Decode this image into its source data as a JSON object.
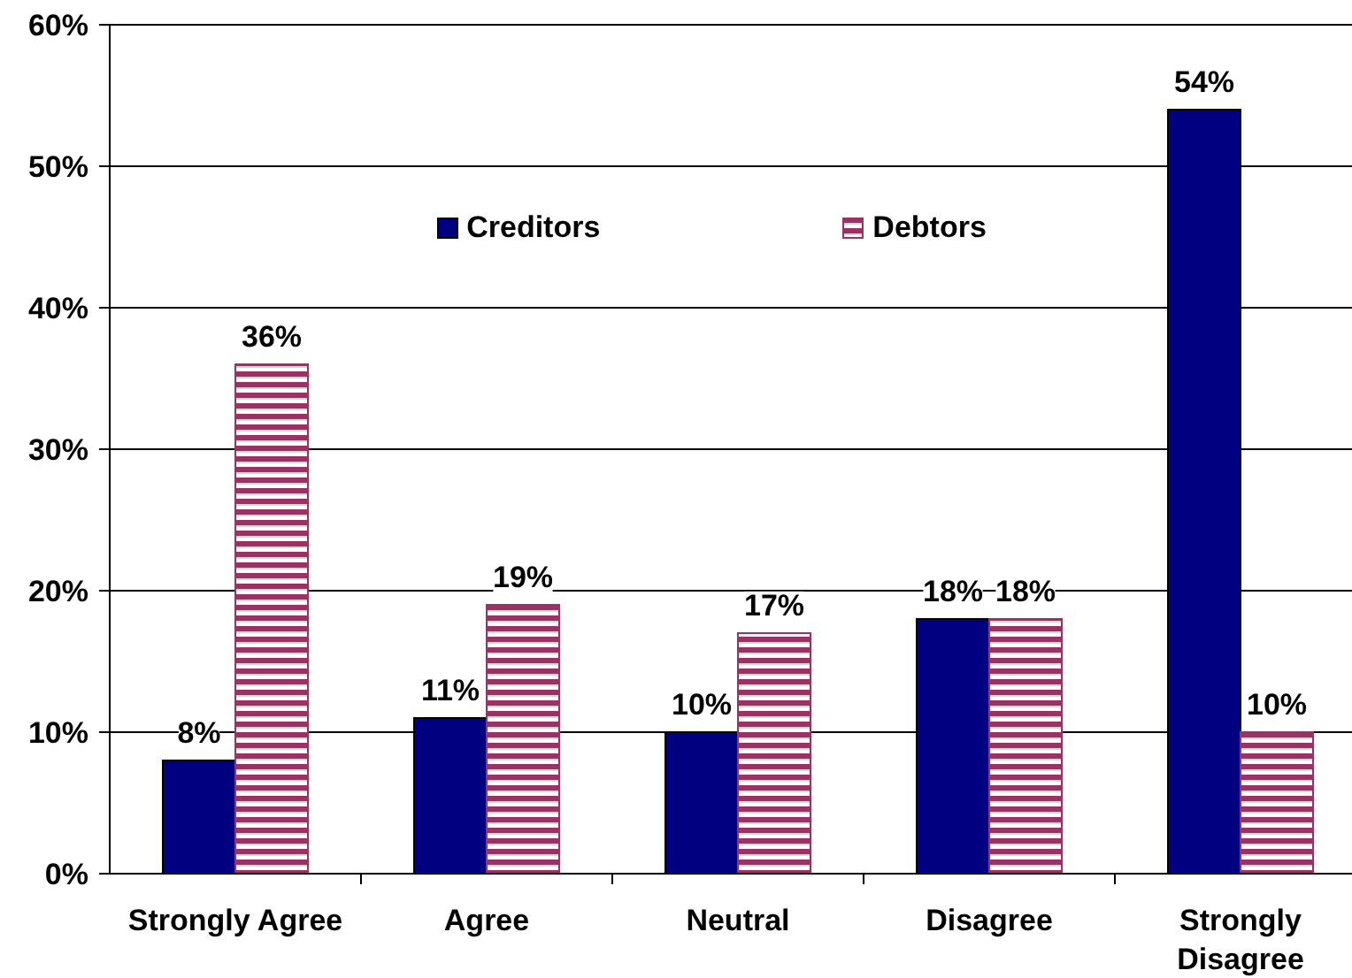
{
  "chart_data": {
    "type": "bar",
    "categories": [
      "Strongly Agree",
      "Agree",
      "Neutral",
      "Disagree",
      "Strongly Disagree"
    ],
    "series": [
      {
        "name": "Creditors",
        "color": "#000080",
        "values": [
          8,
          11,
          10,
          18,
          54
        ],
        "value_labels": [
          "8%",
          "11%",
          "10%",
          "18%",
          "54%"
        ]
      },
      {
        "name": "Debtors",
        "color": "#993366",
        "values": [
          36,
          19,
          17,
          18,
          10
        ],
        "value_labels": [
          "36%",
          "19%",
          "17%",
          "18%",
          "10%"
        ]
      }
    ],
    "ylim": [
      0,
      60
    ],
    "yticks": [
      {
        "value": 0,
        "label": "0%"
      },
      {
        "value": 10,
        "label": "10%"
      },
      {
        "value": 20,
        "label": "20%"
      },
      {
        "value": 30,
        "label": "30%"
      },
      {
        "value": 40,
        "label": "40%"
      },
      {
        "value": 50,
        "label": "50%"
      },
      {
        "value": 60,
        "label": "60%"
      }
    ],
    "grid": "y",
    "legend": "top"
  }
}
